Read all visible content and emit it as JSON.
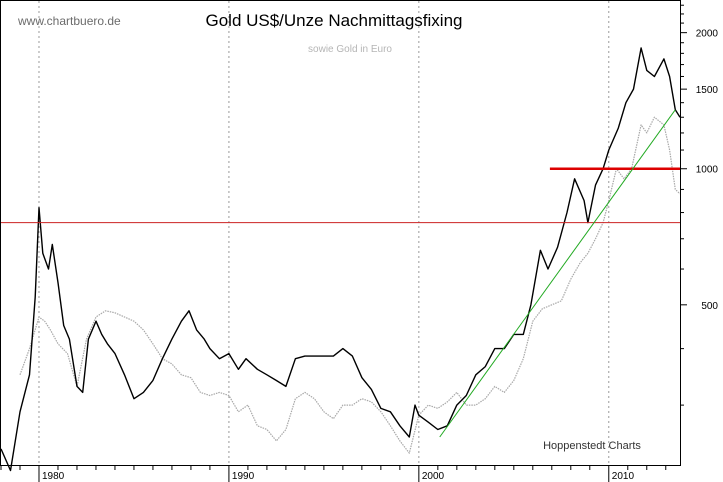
{
  "watermark": "www.chartbuero.de",
  "credit": "Hoppenstedt Charts",
  "chart_data": {
    "type": "line",
    "title": "Gold US$/Unze Nachmittagsfixing",
    "subtitle": "sowie Gold in Euro",
    "x_range": [
      1978.0,
      2013.75
    ],
    "y_scale": "log",
    "y_range": [
      220,
      2350
    ],
    "x_ticks": [
      1980,
      1990,
      2000,
      2010
    ],
    "x_tick_labels": [
      "1980",
      "1990",
      "2000",
      "2010"
    ],
    "y_ticks": [
      500,
      1000,
      1500,
      2000
    ],
    "y_tick_labels": [
      "500",
      "1000",
      "1500",
      "2000"
    ],
    "vertical_gridlines_at": [
      1980,
      1990,
      2000,
      2010
    ],
    "series": [
      {
        "name": "Gold US$/Unze",
        "color": "#000000",
        "points": [
          [
            1978.0,
            240
          ],
          [
            1978.5,
            215
          ],
          [
            1979.0,
            290
          ],
          [
            1979.5,
            350
          ],
          [
            1979.8,
            520
          ],
          [
            1980.0,
            820
          ],
          [
            1980.2,
            650
          ],
          [
            1980.5,
            600
          ],
          [
            1980.7,
            680
          ],
          [
            1981.0,
            560
          ],
          [
            1981.3,
            450
          ],
          [
            1981.6,
            420
          ],
          [
            1982.0,
            330
          ],
          [
            1982.3,
            320
          ],
          [
            1982.6,
            420
          ],
          [
            1983.0,
            460
          ],
          [
            1983.3,
            430
          ],
          [
            1983.6,
            410
          ],
          [
            1984.0,
            390
          ],
          [
            1984.5,
            350
          ],
          [
            1985.0,
            310
          ],
          [
            1985.5,
            320
          ],
          [
            1986.0,
            340
          ],
          [
            1986.5,
            380
          ],
          [
            1987.0,
            420
          ],
          [
            1987.5,
            460
          ],
          [
            1987.9,
            485
          ],
          [
            1988.3,
            440
          ],
          [
            1988.7,
            420
          ],
          [
            1989.0,
            400
          ],
          [
            1989.5,
            380
          ],
          [
            1990.0,
            390
          ],
          [
            1990.5,
            360
          ],
          [
            1990.9,
            380
          ],
          [
            1991.5,
            360
          ],
          [
            1992.0,
            350
          ],
          [
            1992.5,
            340
          ],
          [
            1993.0,
            330
          ],
          [
            1993.5,
            380
          ],
          [
            1994.0,
            385
          ],
          [
            1994.5,
            385
          ],
          [
            1995.0,
            385
          ],
          [
            1995.5,
            385
          ],
          [
            1996.0,
            400
          ],
          [
            1996.5,
            385
          ],
          [
            1997.0,
            345
          ],
          [
            1997.5,
            325
          ],
          [
            1998.0,
            295
          ],
          [
            1998.5,
            290
          ],
          [
            1999.0,
            270
          ],
          [
            1999.5,
            255
          ],
          [
            1999.8,
            300
          ],
          [
            2000.0,
            285
          ],
          [
            2000.5,
            275
          ],
          [
            2001.0,
            265
          ],
          [
            2001.5,
            270
          ],
          [
            2002.0,
            300
          ],
          [
            2002.5,
            315
          ],
          [
            2003.0,
            350
          ],
          [
            2003.5,
            365
          ],
          [
            2004.0,
            400
          ],
          [
            2004.5,
            400
          ],
          [
            2005.0,
            430
          ],
          [
            2005.5,
            430
          ],
          [
            2005.9,
            500
          ],
          [
            2006.4,
            660
          ],
          [
            2006.8,
            600
          ],
          [
            2007.3,
            670
          ],
          [
            2007.8,
            800
          ],
          [
            2008.2,
            950
          ],
          [
            2008.7,
            850
          ],
          [
            2008.9,
            760
          ],
          [
            2009.3,
            920
          ],
          [
            2009.7,
            1000
          ],
          [
            2010.0,
            1100
          ],
          [
            2010.5,
            1230
          ],
          [
            2010.9,
            1400
          ],
          [
            2011.3,
            1500
          ],
          [
            2011.7,
            1850
          ],
          [
            2012.0,
            1650
          ],
          [
            2012.4,
            1600
          ],
          [
            2012.9,
            1750
          ],
          [
            2013.2,
            1600
          ],
          [
            2013.5,
            1350
          ],
          [
            2013.75,
            1300
          ]
        ]
      },
      {
        "name": "Gold in Euro",
        "color": "#a8a8a8",
        "points": [
          [
            1979.0,
            350
          ],
          [
            1979.5,
            400
          ],
          [
            1980.0,
            470
          ],
          [
            1980.3,
            460
          ],
          [
            1980.6,
            440
          ],
          [
            1981.0,
            410
          ],
          [
            1981.5,
            390
          ],
          [
            1982.0,
            330
          ],
          [
            1982.5,
            420
          ],
          [
            1983.0,
            470
          ],
          [
            1983.5,
            485
          ],
          [
            1984.0,
            480
          ],
          [
            1984.5,
            470
          ],
          [
            1985.0,
            460
          ],
          [
            1985.5,
            440
          ],
          [
            1986.0,
            410
          ],
          [
            1986.5,
            380
          ],
          [
            1987.0,
            370
          ],
          [
            1987.5,
            350
          ],
          [
            1988.0,
            345
          ],
          [
            1988.5,
            320
          ],
          [
            1989.0,
            315
          ],
          [
            1989.5,
            320
          ],
          [
            1990.0,
            315
          ],
          [
            1990.5,
            290
          ],
          [
            1991.0,
            300
          ],
          [
            1991.5,
            270
          ],
          [
            1992.0,
            265
          ],
          [
            1992.5,
            250
          ],
          [
            1993.0,
            265
          ],
          [
            1993.5,
            310
          ],
          [
            1994.0,
            320
          ],
          [
            1994.5,
            310
          ],
          [
            1995.0,
            290
          ],
          [
            1995.5,
            280
          ],
          [
            1996.0,
            300
          ],
          [
            1996.5,
            300
          ],
          [
            1997.0,
            310
          ],
          [
            1997.5,
            305
          ],
          [
            1998.0,
            290
          ],
          [
            1998.5,
            270
          ],
          [
            1999.0,
            250
          ],
          [
            1999.5,
            235
          ],
          [
            2000.0,
            285
          ],
          [
            2000.5,
            300
          ],
          [
            2001.0,
            295
          ],
          [
            2001.5,
            305
          ],
          [
            2002.0,
            320
          ],
          [
            2002.5,
            300
          ],
          [
            2003.0,
            300
          ],
          [
            2003.5,
            310
          ],
          [
            2004.0,
            330
          ],
          [
            2004.5,
            320
          ],
          [
            2005.0,
            340
          ],
          [
            2005.5,
            380
          ],
          [
            2006.0,
            460
          ],
          [
            2006.5,
            490
          ],
          [
            2007.0,
            500
          ],
          [
            2007.5,
            510
          ],
          [
            2008.0,
            570
          ],
          [
            2008.5,
            620
          ],
          [
            2008.9,
            650
          ],
          [
            2009.3,
            700
          ],
          [
            2009.7,
            760
          ],
          [
            2010.0,
            850
          ],
          [
            2010.4,
            1000
          ],
          [
            2010.8,
            950
          ],
          [
            2011.2,
            1000
          ],
          [
            2011.7,
            1250
          ],
          [
            2012.0,
            1200
          ],
          [
            2012.4,
            1300
          ],
          [
            2012.9,
            1250
          ],
          [
            2013.2,
            1100
          ],
          [
            2013.5,
            900
          ],
          [
            2013.75,
            880
          ]
        ]
      }
    ],
    "annotations": [
      {
        "type": "hline",
        "name": "resistance-line-full",
        "color": "#cc2222",
        "y": 760,
        "x_start": 1978.0,
        "x_end": 2013.75
      },
      {
        "type": "hline",
        "name": "resistance-line-short",
        "color": "#dd0000",
        "y": 1000,
        "x_start": 2006.9,
        "x_end": 2013.75
      },
      {
        "type": "trendline",
        "name": "support-trendline",
        "color": "#22aa22",
        "from": [
          2001.1,
          255
        ],
        "to": [
          2013.5,
          1350
        ]
      }
    ]
  }
}
